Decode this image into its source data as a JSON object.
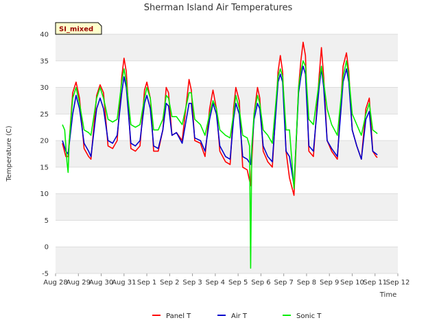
{
  "chart_data": {
    "type": "line",
    "title": "Sherman Island Air Temperatures",
    "xlabel": "Time",
    "ylabel": "Temperature (C)",
    "badge": "SI_mixed",
    "ylim": [
      -5,
      40
    ],
    "yticks": [
      -5,
      0,
      5,
      10,
      15,
      20,
      25,
      30,
      35,
      40
    ],
    "xlim": [
      0,
      15
    ],
    "xticks": [
      {
        "pos": 0,
        "label": "Aug 28"
      },
      {
        "pos": 1,
        "label": "Aug 29"
      },
      {
        "pos": 2,
        "label": "Aug 30"
      },
      {
        "pos": 3,
        "label": "Aug 31"
      },
      {
        "pos": 4,
        "label": "Sep 1"
      },
      {
        "pos": 5,
        "label": "Sep 2"
      },
      {
        "pos": 6,
        "label": "Sep 3"
      },
      {
        "pos": 7,
        "label": "Sep 4"
      },
      {
        "pos": 8,
        "label": "Sep 5"
      },
      {
        "pos": 9,
        "label": "Sep 6"
      },
      {
        "pos": 10,
        "label": "Sep 7"
      },
      {
        "pos": 11,
        "label": "Sep 8"
      },
      {
        "pos": 12,
        "label": "Sep 9"
      },
      {
        "pos": 13,
        "label": "Sep 10"
      },
      {
        "pos": 14,
        "label": "Sep 11"
      },
      {
        "pos": 15,
        "label": "Sep 12"
      }
    ],
    "grid": true,
    "legend_position": "bottom",
    "series": [
      {
        "name": "Panel T",
        "color": "#ff0000",
        "points": [
          [
            0.3,
            19.5
          ],
          [
            0.45,
            17
          ],
          [
            0.55,
            17
          ],
          [
            0.75,
            29
          ],
          [
            0.9,
            31
          ],
          [
            1.05,
            28
          ],
          [
            1.25,
            18.5
          ],
          [
            1.45,
            17
          ],
          [
            1.55,
            16.5
          ],
          [
            1.8,
            28.5
          ],
          [
            1.95,
            30.5
          ],
          [
            2.1,
            29
          ],
          [
            2.3,
            19
          ],
          [
            2.5,
            18.5
          ],
          [
            2.7,
            20
          ],
          [
            2.9,
            32
          ],
          [
            3.0,
            35.5
          ],
          [
            3.1,
            33
          ],
          [
            3.3,
            18.5
          ],
          [
            3.5,
            18
          ],
          [
            3.7,
            19
          ],
          [
            3.9,
            29.5
          ],
          [
            4.0,
            31
          ],
          [
            4.15,
            28
          ],
          [
            4.3,
            18
          ],
          [
            4.5,
            18
          ],
          [
            4.7,
            22
          ],
          [
            4.85,
            30
          ],
          [
            4.95,
            29
          ],
          [
            5.1,
            21
          ],
          [
            5.3,
            21.5
          ],
          [
            5.55,
            20
          ],
          [
            5.85,
            31.5
          ],
          [
            5.95,
            29.5
          ],
          [
            6.1,
            20
          ],
          [
            6.35,
            19.5
          ],
          [
            6.55,
            17
          ],
          [
            6.75,
            26
          ],
          [
            6.9,
            29.5
          ],
          [
            7.05,
            26
          ],
          [
            7.2,
            18
          ],
          [
            7.45,
            16
          ],
          [
            7.65,
            15.5
          ],
          [
            7.8,
            26
          ],
          [
            7.9,
            30
          ],
          [
            8.05,
            27.5
          ],
          [
            8.2,
            15
          ],
          [
            8.4,
            14.5
          ],
          [
            8.55,
            11.5
          ],
          [
            8.7,
            25
          ],
          [
            8.85,
            30
          ],
          [
            8.95,
            28
          ],
          [
            9.1,
            18
          ],
          [
            9.3,
            16
          ],
          [
            9.5,
            15
          ],
          [
            9.75,
            33
          ],
          [
            9.85,
            36
          ],
          [
            9.95,
            33
          ],
          [
            10.1,
            18
          ],
          [
            10.25,
            13
          ],
          [
            10.45,
            9.7
          ],
          [
            10.65,
            30
          ],
          [
            10.75,
            35
          ],
          [
            10.85,
            38.5
          ],
          [
            10.95,
            36
          ],
          [
            11.1,
            18
          ],
          [
            11.3,
            17
          ],
          [
            11.55,
            32
          ],
          [
            11.65,
            37.5
          ],
          [
            11.75,
            32
          ],
          [
            11.9,
            20
          ],
          [
            12.1,
            18
          ],
          [
            12.35,
            16.5
          ],
          [
            12.6,
            34
          ],
          [
            12.75,
            36.5
          ],
          [
            12.85,
            33
          ],
          [
            13.0,
            22
          ],
          [
            13.2,
            19
          ],
          [
            13.4,
            16.5
          ],
          [
            13.6,
            26
          ],
          [
            13.75,
            28
          ],
          [
            13.9,
            18
          ],
          [
            14.05,
            17
          ],
          [
            14.1,
            16.8
          ]
        ]
      },
      {
        "name": "Air T",
        "color": "#0000cc",
        "points": [
          [
            0.3,
            20
          ],
          [
            0.45,
            18
          ],
          [
            0.55,
            17.5
          ],
          [
            0.75,
            25
          ],
          [
            0.9,
            28.5
          ],
          [
            1.05,
            26
          ],
          [
            1.25,
            19.5
          ],
          [
            1.45,
            18
          ],
          [
            1.55,
            17
          ],
          [
            1.8,
            26
          ],
          [
            1.95,
            28
          ],
          [
            2.1,
            26
          ],
          [
            2.3,
            20
          ],
          [
            2.5,
            19.5
          ],
          [
            2.7,
            21
          ],
          [
            2.9,
            29
          ],
          [
            3.0,
            32
          ],
          [
            3.1,
            30
          ],
          [
            3.3,
            19.5
          ],
          [
            3.5,
            19
          ],
          [
            3.7,
            20
          ],
          [
            3.9,
            27
          ],
          [
            4.0,
            28.5
          ],
          [
            4.15,
            26
          ],
          [
            4.3,
            19
          ],
          [
            4.5,
            18.5
          ],
          [
            4.7,
            22
          ],
          [
            4.85,
            27
          ],
          [
            4.95,
            26.5
          ],
          [
            5.1,
            21
          ],
          [
            5.3,
            21.5
          ],
          [
            5.55,
            19.5
          ],
          [
            5.85,
            27
          ],
          [
            5.95,
            27
          ],
          [
            6.1,
            20.5
          ],
          [
            6.35,
            20
          ],
          [
            6.55,
            18
          ],
          [
            6.75,
            24
          ],
          [
            6.9,
            27
          ],
          [
            7.05,
            25
          ],
          [
            7.2,
            19
          ],
          [
            7.45,
            17
          ],
          [
            7.65,
            16.5
          ],
          [
            7.8,
            24
          ],
          [
            7.9,
            27
          ],
          [
            8.05,
            25
          ],
          [
            8.2,
            17
          ],
          [
            8.4,
            16.5
          ],
          [
            8.55,
            15.5
          ],
          [
            8.7,
            24
          ],
          [
            8.85,
            27
          ],
          [
            8.95,
            26
          ],
          [
            9.1,
            19
          ],
          [
            9.3,
            17
          ],
          [
            9.5,
            16
          ],
          [
            9.75,
            31
          ],
          [
            9.85,
            32.5
          ],
          [
            9.95,
            31
          ],
          [
            10.1,
            18
          ],
          [
            10.25,
            17
          ],
          [
            10.45,
            11.5
          ],
          [
            10.65,
            29
          ],
          [
            10.75,
            32
          ],
          [
            10.85,
            34
          ],
          [
            10.95,
            32.5
          ],
          [
            11.1,
            19
          ],
          [
            11.3,
            18
          ],
          [
            11.55,
            30
          ],
          [
            11.65,
            33.5
          ],
          [
            11.75,
            30
          ],
          [
            11.9,
            20
          ],
          [
            12.1,
            18.5
          ],
          [
            12.35,
            17
          ],
          [
            12.6,
            31
          ],
          [
            12.75,
            33.5
          ],
          [
            12.85,
            31
          ],
          [
            13.0,
            22
          ],
          [
            13.2,
            19
          ],
          [
            13.4,
            16.5
          ],
          [
            13.6,
            24
          ],
          [
            13.75,
            25.5
          ],
          [
            13.9,
            18
          ],
          [
            14.05,
            17.5
          ],
          [
            14.1,
            17.3
          ]
        ]
      },
      {
        "name": "Sonic T",
        "color": "#00ee00",
        "points": [
          [
            0.3,
            23
          ],
          [
            0.4,
            22
          ],
          [
            0.5,
            16
          ],
          [
            0.55,
            14
          ],
          [
            0.6,
            20
          ],
          [
            0.75,
            28
          ],
          [
            0.9,
            30
          ],
          [
            1.05,
            27
          ],
          [
            1.25,
            22
          ],
          [
            1.45,
            21.5
          ],
          [
            1.55,
            21
          ],
          [
            1.8,
            28
          ],
          [
            1.95,
            30
          ],
          [
            2.1,
            28
          ],
          [
            2.3,
            24
          ],
          [
            2.5,
            23.5
          ],
          [
            2.7,
            24
          ],
          [
            2.9,
            31
          ],
          [
            3.0,
            33.5
          ],
          [
            3.1,
            31
          ],
          [
            3.3,
            23
          ],
          [
            3.5,
            22.5
          ],
          [
            3.7,
            23
          ],
          [
            3.9,
            28
          ],
          [
            4.0,
            30
          ],
          [
            4.15,
            28
          ],
          [
            4.3,
            22
          ],
          [
            4.5,
            22
          ],
          [
            4.7,
            24
          ],
          [
            4.85,
            28.5
          ],
          [
            4.95,
            28
          ],
          [
            5.1,
            24.5
          ],
          [
            5.3,
            24.5
          ],
          [
            5.55,
            23
          ],
          [
            5.85,
            29
          ],
          [
            5.95,
            29
          ],
          [
            6.1,
            24
          ],
          [
            6.35,
            23
          ],
          [
            6.55,
            21
          ],
          [
            6.75,
            25
          ],
          [
            6.9,
            27.5
          ],
          [
            7.05,
            26
          ],
          [
            7.2,
            22
          ],
          [
            7.45,
            21
          ],
          [
            7.65,
            20.5
          ],
          [
            7.8,
            25
          ],
          [
            7.9,
            28.5
          ],
          [
            8.05,
            26
          ],
          [
            8.2,
            21
          ],
          [
            8.4,
            20.5
          ],
          [
            8.5,
            19
          ],
          [
            8.55,
            -4
          ],
          [
            8.6,
            19
          ],
          [
            8.7,
            25
          ],
          [
            8.85,
            28.5
          ],
          [
            8.95,
            27
          ],
          [
            9.1,
            22
          ],
          [
            9.3,
            21
          ],
          [
            9.5,
            19.5
          ],
          [
            9.75,
            32
          ],
          [
            9.85,
            33.5
          ],
          [
            9.95,
            32
          ],
          [
            10.1,
            22
          ],
          [
            10.25,
            22
          ],
          [
            10.45,
            11
          ],
          [
            10.65,
            30
          ],
          [
            10.75,
            33
          ],
          [
            10.85,
            35
          ],
          [
            10.95,
            34
          ],
          [
            11.1,
            24
          ],
          [
            11.3,
            23
          ],
          [
            11.55,
            31
          ],
          [
            11.65,
            34
          ],
          [
            11.75,
            31
          ],
          [
            11.9,
            26
          ],
          [
            12.1,
            23
          ],
          [
            12.35,
            21
          ],
          [
            12.6,
            32
          ],
          [
            12.75,
            35
          ],
          [
            12.85,
            32
          ],
          [
            13.0,
            25
          ],
          [
            13.2,
            23
          ],
          [
            13.4,
            21
          ],
          [
            13.6,
            25
          ],
          [
            13.75,
            27
          ],
          [
            13.9,
            22
          ],
          [
            14.05,
            21.5
          ],
          [
            14.1,
            21.3
          ]
        ]
      }
    ]
  }
}
